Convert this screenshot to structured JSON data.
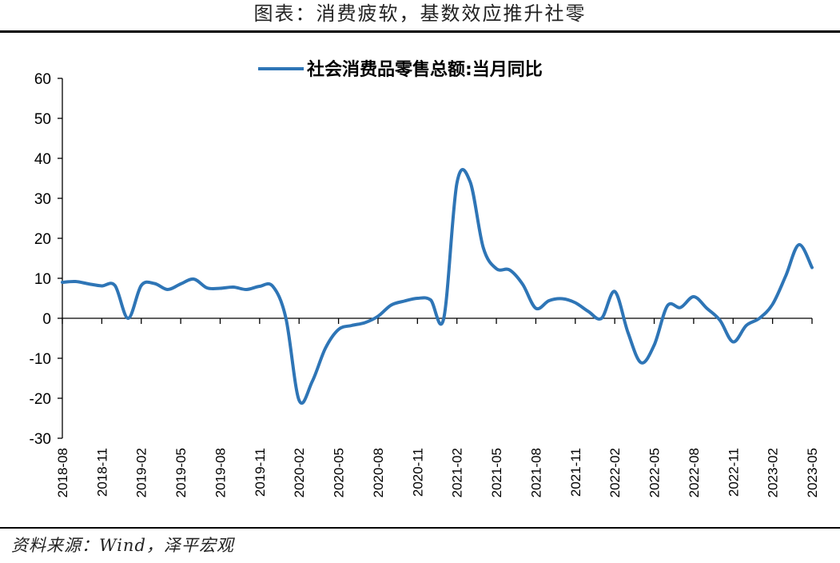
{
  "header": {
    "title": "图表：消费疲软，基数效应推升社零"
  },
  "footer": {
    "source": "资料来源：Wind，泽平宏观"
  },
  "chart_data": {
    "type": "line",
    "title": "",
    "xlabel": "",
    "ylabel": "",
    "ylim": [
      -30,
      60
    ],
    "yticks": [
      60,
      50,
      40,
      30,
      20,
      10,
      0,
      -10,
      -20,
      -30
    ],
    "legend_position": "top-center",
    "grid": false,
    "x": [
      "2018-08",
      "2018-09",
      "2018-10",
      "2018-11",
      "2018-12",
      "2019-01",
      "2019-02",
      "2019-03",
      "2019-04",
      "2019-05",
      "2019-06",
      "2019-07",
      "2019-08",
      "2019-09",
      "2019-10",
      "2019-11",
      "2019-12",
      "2020-01",
      "2020-02",
      "2020-03",
      "2020-04",
      "2020-05",
      "2020-06",
      "2020-07",
      "2020-08",
      "2020-09",
      "2020-10",
      "2020-11",
      "2020-12",
      "2021-01",
      "2021-02",
      "2021-03",
      "2021-04",
      "2021-05",
      "2021-06",
      "2021-07",
      "2021-08",
      "2021-09",
      "2021-10",
      "2021-11",
      "2021-12",
      "2022-01",
      "2022-02",
      "2022-03",
      "2022-04",
      "2022-05",
      "2022-06",
      "2022-07",
      "2022-08",
      "2022-09",
      "2022-10",
      "2022-11",
      "2022-12",
      "2023-01",
      "2023-02",
      "2023-03",
      "2023-04",
      "2023-05"
    ],
    "x_tick_labels": [
      "2018-08",
      "2018-11",
      "2019-02",
      "2019-05",
      "2019-08",
      "2019-11",
      "2020-02",
      "2020-05",
      "2020-08",
      "2020-11",
      "2021-02",
      "2021-05",
      "2021-08",
      "2021-11",
      "2022-02",
      "2022-05",
      "2022-08",
      "2022-11",
      "2023-02",
      "2023-05"
    ],
    "series": [
      {
        "name": "社会消费品零售总额:当月同比",
        "color": "#2E75B6",
        "values": [
          9.0,
          9.2,
          8.6,
          8.1,
          8.2,
          0.0,
          8.2,
          8.7,
          7.2,
          8.6,
          9.8,
          7.6,
          7.5,
          7.8,
          7.2,
          8.0,
          8.0,
          0.0,
          -20.5,
          -15.8,
          -7.5,
          -2.8,
          -1.8,
          -1.1,
          0.5,
          3.3,
          4.3,
          5.0,
          4.6,
          0.0,
          33.8,
          34.2,
          17.7,
          12.4,
          12.1,
          8.5,
          2.5,
          4.4,
          4.9,
          3.9,
          1.7,
          0.0,
          6.7,
          -3.5,
          -11.1,
          -6.7,
          3.1,
          2.7,
          5.4,
          2.5,
          -0.5,
          -5.9,
          -1.8,
          0.0,
          3.5,
          10.6,
          18.4,
          12.7
        ]
      }
    ]
  }
}
